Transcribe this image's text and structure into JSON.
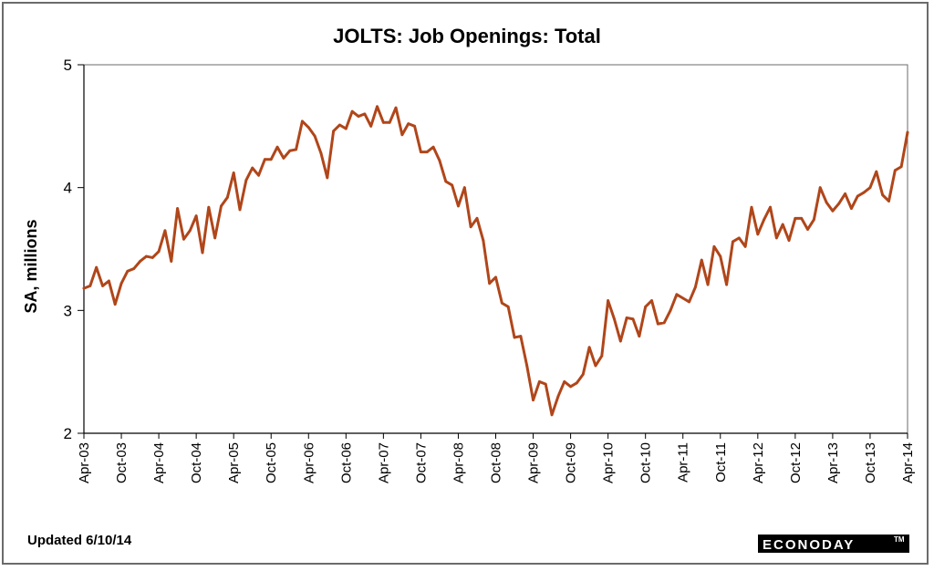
{
  "colors": {
    "line": "#B0461A",
    "axis": "#000000",
    "frame": "#6B6B6B",
    "brand_bg": "#000000",
    "brand_text": "#FFFFFF"
  },
  "footer": {
    "updated": "Updated 6/10/14",
    "brand": "ECONODAY",
    "brand_tm": "TM"
  },
  "chart_data": {
    "type": "line",
    "title": "JOLTS: Job Openings: Total",
    "xlabel": "",
    "ylabel": "SA, millions",
    "ylim": [
      2,
      5
    ],
    "yticks": [
      "2",
      "3",
      "4",
      "5"
    ],
    "grid": false,
    "legend": "none",
    "x_start": "Apr-03",
    "x_end": "Apr-14",
    "xtick_labels": [
      "Apr-03",
      "Oct-03",
      "Apr-04",
      "Oct-04",
      "Apr-05",
      "Oct-05",
      "Apr-06",
      "Oct-06",
      "Apr-07",
      "Oct-07",
      "Apr-08",
      "Oct-08",
      "Apr-09",
      "Oct-09",
      "Apr-10",
      "Oct-10",
      "Apr-11",
      "Oct-11",
      "Apr-12",
      "Oct-12",
      "Apr-13",
      "Oct-13",
      "Apr-14"
    ],
    "series": [
      {
        "name": "",
        "values": [
          3.18,
          3.2,
          3.35,
          3.2,
          3.24,
          3.05,
          3.22,
          3.32,
          3.34,
          3.4,
          3.44,
          3.43,
          3.48,
          3.65,
          3.4,
          3.83,
          3.58,
          3.65,
          3.77,
          3.47,
          3.84,
          3.59,
          3.85,
          3.92,
          4.12,
          3.82,
          4.06,
          4.16,
          4.1,
          4.23,
          4.23,
          4.33,
          4.24,
          4.3,
          4.31,
          4.54,
          4.49,
          4.42,
          4.28,
          4.08,
          4.46,
          4.51,
          4.48,
          4.62,
          4.58,
          4.6,
          4.5,
          4.66,
          4.53,
          4.53,
          4.65,
          4.43,
          4.52,
          4.5,
          4.29,
          4.29,
          4.33,
          4.22,
          4.05,
          4.02,
          3.85,
          4.0,
          3.68,
          3.75,
          3.57,
          3.22,
          3.27,
          3.06,
          3.03,
          2.78,
          2.79,
          2.55,
          2.27,
          2.42,
          2.4,
          2.15,
          2.3,
          2.42,
          2.38,
          2.41,
          2.48,
          2.7,
          2.55,
          2.63,
          3.08,
          2.93,
          2.75,
          2.94,
          2.93,
          2.79,
          3.03,
          3.08,
          2.89,
          2.9,
          3.0,
          3.13,
          3.1,
          3.07,
          3.19,
          3.41,
          3.21,
          3.52,
          3.44,
          3.21,
          3.56,
          3.59,
          3.52,
          3.84,
          3.62,
          3.74,
          3.84,
          3.59,
          3.7,
          3.57,
          3.75,
          3.75,
          3.66,
          3.74,
          4.0,
          3.88,
          3.81,
          3.87,
          3.95,
          3.83,
          3.93,
          3.96,
          4.0,
          4.13,
          3.94,
          3.89,
          4.14,
          4.17,
          4.45
        ]
      }
    ]
  }
}
